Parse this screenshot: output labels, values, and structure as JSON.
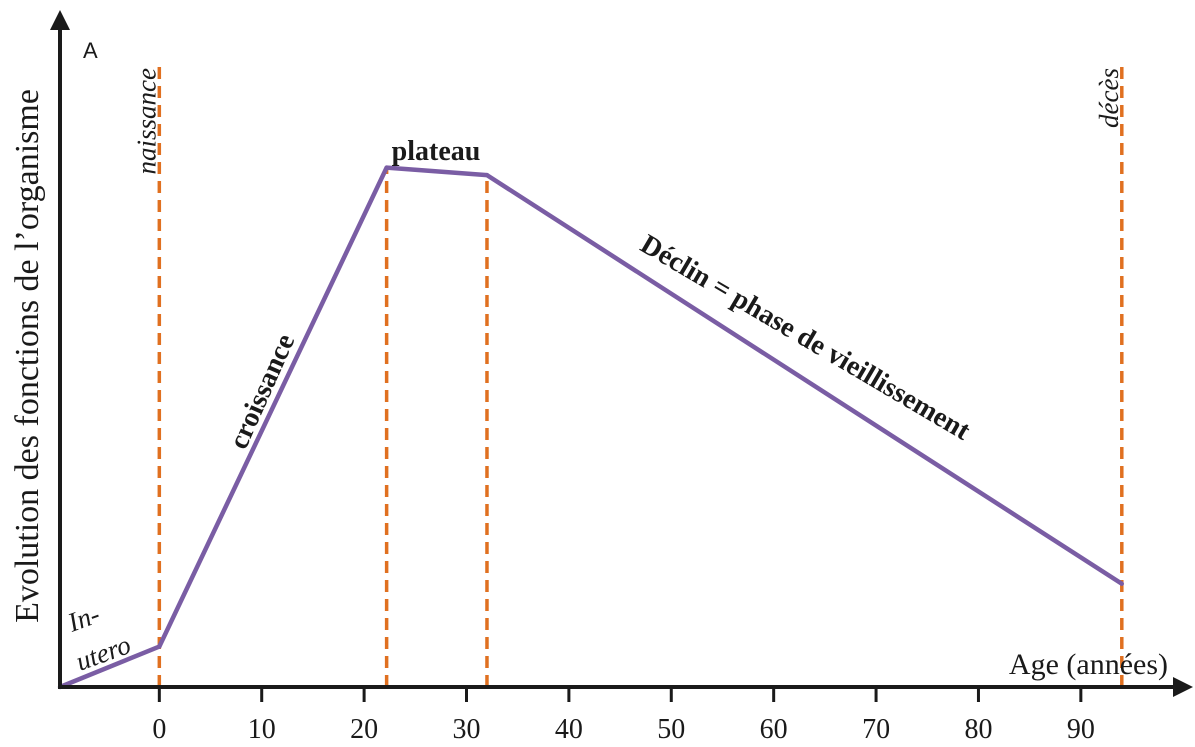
{
  "chart_data": {
    "type": "line",
    "title": "",
    "xlabel": "Age (années)",
    "ylabel": "Evolution des fonctions de l’organisme",
    "y_axis_marker": "A",
    "xlim": [
      -9.7,
      99
    ],
    "ylim": [
      0,
      100
    ],
    "x_ticks": [
      0,
      10,
      20,
      30,
      40,
      50,
      60,
      70,
      80,
      90
    ],
    "x_tick_labels": [
      "0",
      "10",
      "20",
      "30",
      "40",
      "50",
      "60",
      "70",
      "80",
      "90"
    ],
    "grid": false,
    "legend": "none",
    "line_color": "#7a5da4",
    "marker_color": "#e07020",
    "axis_color": "#1a1a1a",
    "series": [
      {
        "x": [
          -9.7,
          0,
          22.2,
          32,
          94
        ],
        "y": [
          0,
          6.5,
          83.5,
          82.3,
          16.6
        ]
      }
    ],
    "vertical_markers": [
      {
        "x": 0,
        "label": "naissance",
        "top": 100
      },
      {
        "x": 22.2,
        "label": "",
        "top": 83.5
      },
      {
        "x": 32,
        "label": "",
        "top": 82.3
      },
      {
        "x": 94,
        "label": "décès",
        "top": 100
      }
    ],
    "phase_labels": {
      "in_utero_line1": "In-",
      "in_utero_line2": "utero",
      "croissance": "croissance",
      "plateau": "plateau",
      "declin": "Déclin = phase de vieillissement"
    }
  }
}
